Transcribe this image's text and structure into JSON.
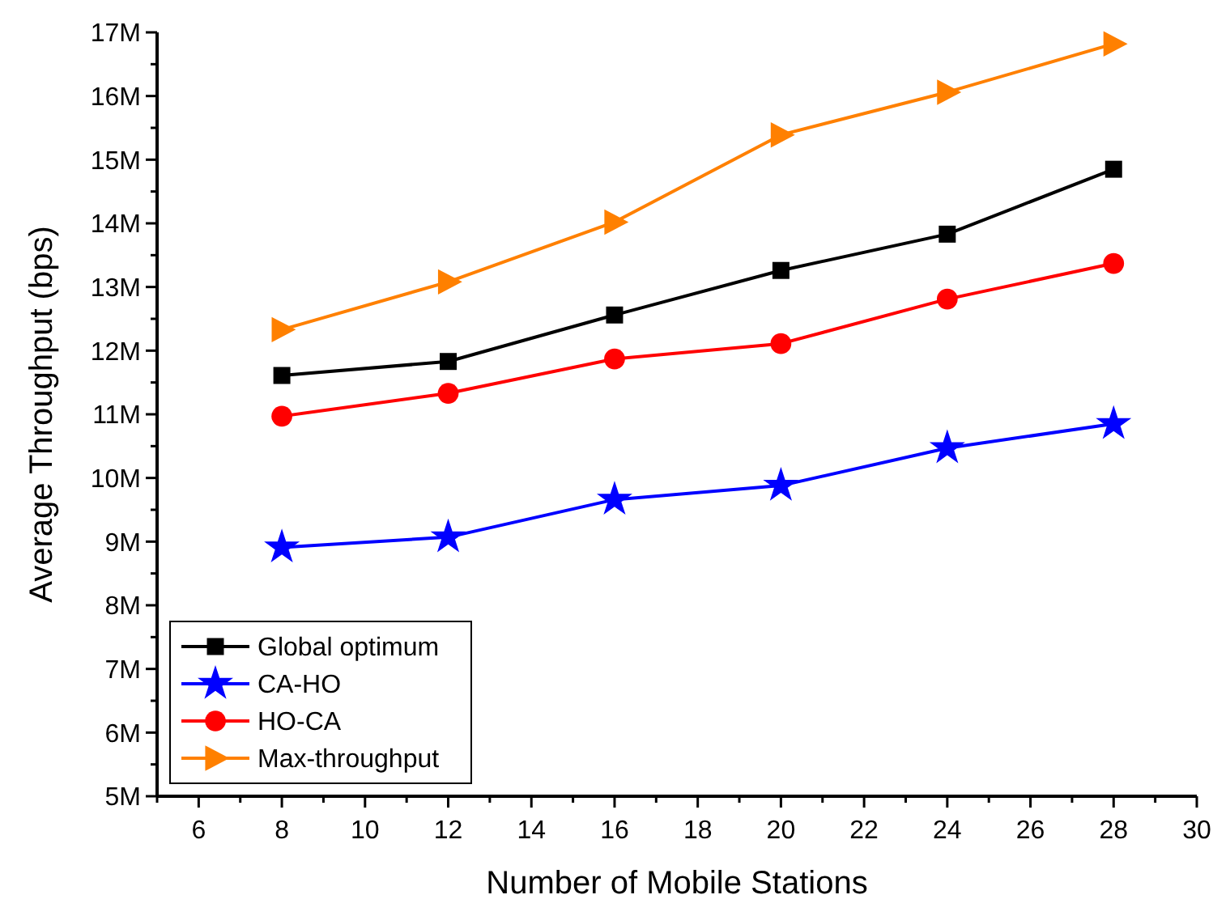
{
  "chart_data": {
    "type": "line",
    "xlabel": "Number of Mobile Stations",
    "ylabel": "Average Throughput (bps)",
    "x": [
      8,
      12,
      16,
      20,
      24,
      28
    ],
    "series": [
      {
        "name": "Global optimum",
        "color": "#000000",
        "marker": "square",
        "values": [
          11.61,
          11.83,
          12.56,
          13.26,
          13.83,
          14.85
        ]
      },
      {
        "name": "CA-HO",
        "color": "#0000ff",
        "marker": "star",
        "values": [
          8.91,
          9.07,
          9.66,
          9.88,
          10.47,
          10.85
        ]
      },
      {
        "name": "HO-CA",
        "color": "#ff0000",
        "marker": "circle",
        "values": [
          10.97,
          11.33,
          11.87,
          12.11,
          12.81,
          13.37
        ]
      },
      {
        "name": "Max-throughput",
        "color": "#ff8000",
        "marker": "triangle",
        "values": [
          12.33,
          13.08,
          14.02,
          15.39,
          16.06,
          16.82
        ]
      }
    ],
    "xlim": [
      5,
      30
    ],
    "xticks": [
      {
        "value": 5,
        "label": null
      },
      6,
      {
        "value": 7,
        "label": null
      },
      8,
      {
        "value": 9,
        "label": null
      },
      10,
      {
        "value": 11,
        "label": null
      },
      12,
      {
        "value": 13,
        "label": null
      },
      14,
      {
        "value": 15,
        "label": null
      },
      16,
      {
        "value": 17,
        "label": null
      },
      18,
      {
        "value": 19,
        "label": null
      },
      20,
      {
        "value": 21,
        "label": null
      },
      22,
      {
        "value": 23,
        "label": null
      },
      24,
      {
        "value": 25,
        "label": null
      },
      26,
      {
        "value": 27,
        "label": null
      },
      28,
      {
        "value": 29,
        "label": null
      },
      30
    ],
    "ylim": [
      5,
      17
    ],
    "yticks": [
      {
        "value": 5,
        "label": "5M"
      },
      {
        "value": 5.5,
        "label": null
      },
      {
        "value": 6,
        "label": "6M"
      },
      {
        "value": 6.5,
        "label": null
      },
      {
        "value": 7,
        "label": "7M"
      },
      {
        "value": 7.5,
        "label": null
      },
      {
        "value": 8,
        "label": "8M"
      },
      {
        "value": 8.5,
        "label": null
      },
      {
        "value": 9,
        "label": "9M"
      },
      {
        "value": 9.5,
        "label": null
      },
      {
        "value": 10,
        "label": "10M"
      },
      {
        "value": 10.5,
        "label": null
      },
      {
        "value": 11,
        "label": "11M"
      },
      {
        "value": 11.5,
        "label": null
      },
      {
        "value": 12,
        "label": "12M"
      },
      {
        "value": 12.5,
        "label": null
      },
      {
        "value": 13,
        "label": "13M"
      },
      {
        "value": 13.5,
        "label": null
      },
      {
        "value": 14,
        "label": "14M"
      },
      {
        "value": 14.5,
        "label": null
      },
      {
        "value": 15,
        "label": "15M"
      },
      {
        "value": 15.5,
        "label": null
      },
      {
        "value": 16,
        "label": "16M"
      },
      {
        "value": 16.5,
        "label": null
      },
      {
        "value": 17,
        "label": "17M"
      }
    ],
    "grid": false,
    "legend": "bottom left",
    "line_style": "solid"
  }
}
